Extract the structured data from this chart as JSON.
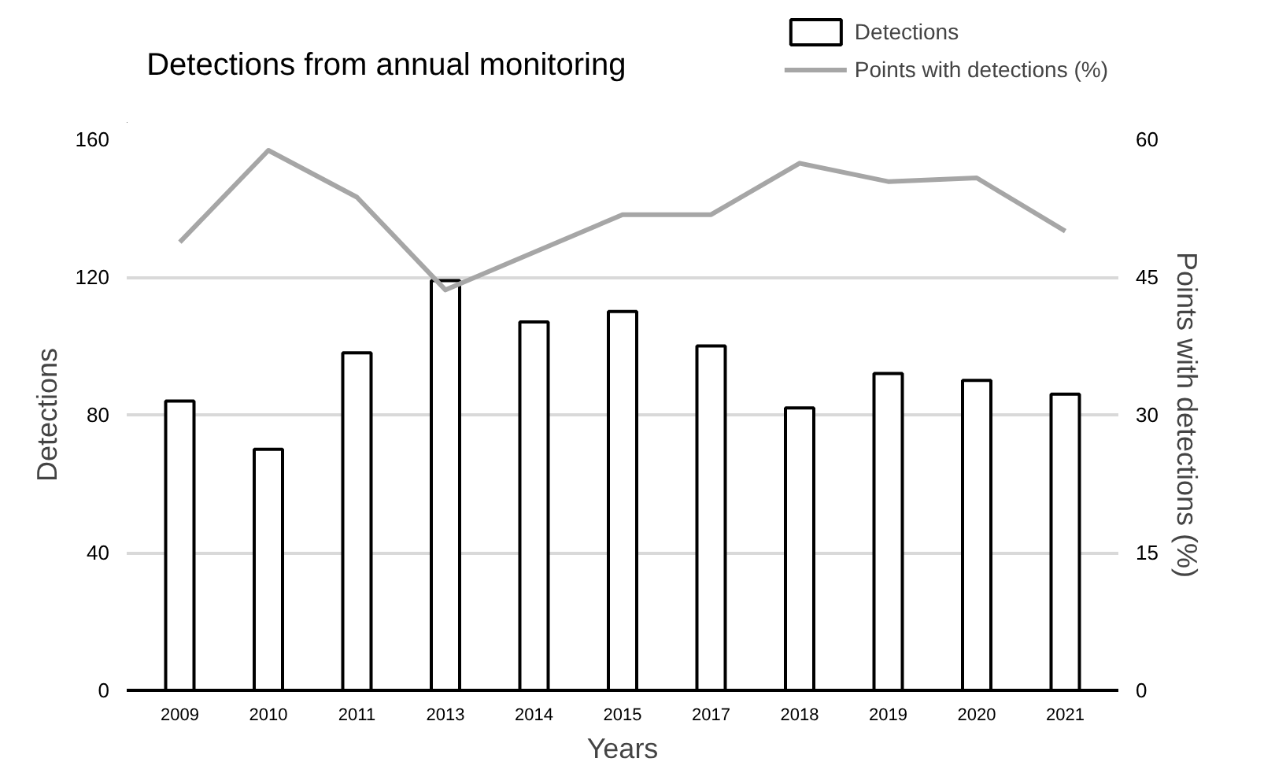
{
  "chart_data": {
    "type": "bar",
    "title": "Detections from annual monitoring",
    "xlabel": "Years",
    "ylabel": "Detections",
    "y2label": "Points with detections (%)",
    "categories": [
      "2009",
      "2010",
      "2011",
      "2013",
      "2014",
      "2015",
      "2017",
      "2018",
      "2019",
      "2020",
      "2021"
    ],
    "series": [
      {
        "name": "Detections",
        "color": "#ffffff",
        "values": [
          84,
          70,
          98,
          119,
          107,
          110,
          100,
          82,
          92,
          90,
          86
        ]
      },
      {
        "name": "Points with detections (%)",
        "type": "line",
        "axis": "y2",
        "color": "#a6a6a6",
        "values": [
          48.8,
          58.8,
          53.7,
          43.6,
          47.7,
          51.8,
          51.8,
          57.4,
          55.4,
          55.8,
          50.0
        ]
      }
    ],
    "ylim": [
      0,
      160
    ],
    "yticks": [
      0,
      40,
      80,
      120,
      160
    ],
    "y2lim": [
      0,
      60
    ],
    "y2ticks": [
      0,
      15,
      30,
      45,
      60
    ],
    "grid": "y",
    "legend": "top right"
  }
}
